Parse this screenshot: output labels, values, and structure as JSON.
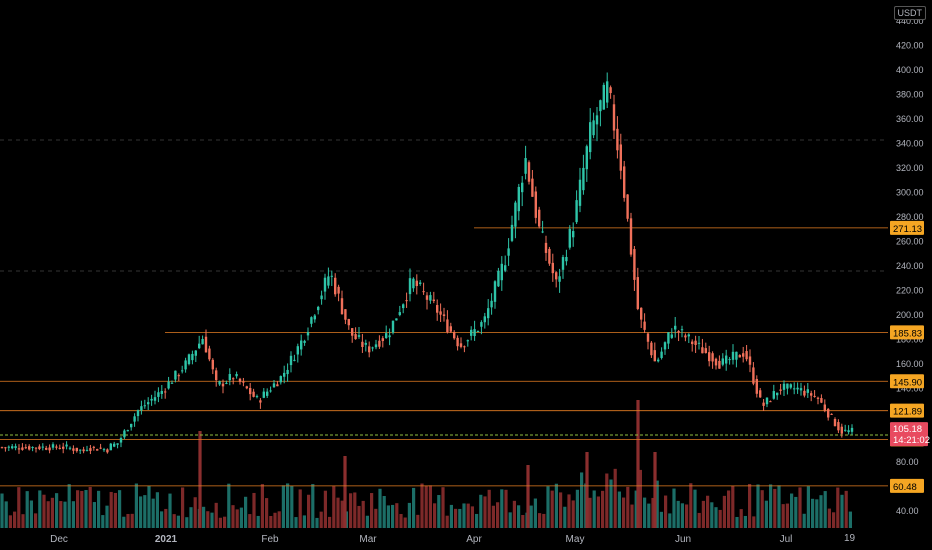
{
  "currency": "USDT",
  "scroll_end_label": "19",
  "colors": {
    "up": "#26a69a",
    "down": "#ef5350",
    "candle_up": "#2ec4a8",
    "candle_down": "#f0705a",
    "level_line": "#e67e22",
    "tag_fill": "#f5a623",
    "price_tag_fill": "#e84a5f",
    "background": "#000000"
  },
  "chart_data": {
    "type": "candlestick",
    "y_axis_ticks": [
      "440.00",
      "420.00",
      "400.00",
      "380.00",
      "360.00",
      "340.00",
      "320.00",
      "300.00",
      "280.00",
      "260.00",
      "240.00",
      "220.00",
      "200.00",
      "180.00",
      "160.00",
      "140.00",
      "120.00",
      "100.00",
      "80.00",
      "60.00",
      "40.00"
    ],
    "y_range": [
      40,
      440
    ],
    "x_labels": [
      "Dec",
      "2021",
      "Feb",
      "Mar",
      "Apr",
      "May",
      "Jun",
      "Jul"
    ],
    "levels": [
      {
        "value": 271.13,
        "label": "271.13"
      },
      {
        "value": 185.83,
        "label": "185.83"
      },
      {
        "value": 145.9,
        "label": "145.90"
      },
      {
        "value": 121.89,
        "label": "121.89"
      },
      {
        "value": 98.5,
        "label": "98.50"
      },
      {
        "value": 60.48,
        "label": "60.48"
      }
    ],
    "current_price": {
      "value": 105.18,
      "label": "105.18",
      "countdown": "14:21:02"
    },
    "price_path": [
      {
        "date": "Nov 20",
        "close": 92
      },
      {
        "date": "Nov 27",
        "close": 90
      },
      {
        "date": "Dec 3",
        "close": 92
      },
      {
        "date": "Dec 10",
        "close": 88
      },
      {
        "date": "Dec 18",
        "close": 95
      },
      {
        "date": "Dec 24",
        "close": 122
      },
      {
        "date": "Dec 31",
        "close": 138
      },
      {
        "date": "Jan 7",
        "close": 160
      },
      {
        "date": "Jan 12",
        "close": 182
      },
      {
        "date": "Jan 16",
        "close": 142
      },
      {
        "date": "Jan 21",
        "close": 150
      },
      {
        "date": "Jan 28",
        "close": 130
      },
      {
        "date": "Feb 4",
        "close": 150
      },
      {
        "date": "Feb 10",
        "close": 180
      },
      {
        "date": "Feb 18",
        "close": 235
      },
      {
        "date": "Feb 24",
        "close": 185
      },
      {
        "date": "Mar 1",
        "close": 172
      },
      {
        "date": "Mar 7",
        "close": 185
      },
      {
        "date": "Mar 14",
        "close": 228
      },
      {
        "date": "Mar 21",
        "close": 205
      },
      {
        "date": "Mar 28",
        "close": 175
      },
      {
        "date": "Apr 4",
        "close": 195
      },
      {
        "date": "Apr 10",
        "close": 245
      },
      {
        "date": "Apr 16",
        "close": 328
      },
      {
        "date": "Apr 20",
        "close": 270
      },
      {
        "date": "Apr 25",
        "close": 225
      },
      {
        "date": "Apr 30",
        "close": 275
      },
      {
        "date": "May 5",
        "close": 350
      },
      {
        "date": "May 10",
        "close": 385
      },
      {
        "date": "May 14",
        "close": 320
      },
      {
        "date": "May 19",
        "close": 200
      },
      {
        "date": "May 24",
        "close": 160
      },
      {
        "date": "May 29",
        "close": 190
      },
      {
        "date": "Jun 5",
        "close": 175
      },
      {
        "date": "Jun 12",
        "close": 160
      },
      {
        "date": "Jun 19",
        "close": 170
      },
      {
        "date": "Jun 24",
        "close": 125
      },
      {
        "date": "Jun 29",
        "close": 140
      },
      {
        "date": "Jul 4",
        "close": 140
      },
      {
        "date": "Jul 10",
        "close": 133
      },
      {
        "date": "Jul 17",
        "close": 105
      }
    ],
    "volume_max": 1.0
  }
}
